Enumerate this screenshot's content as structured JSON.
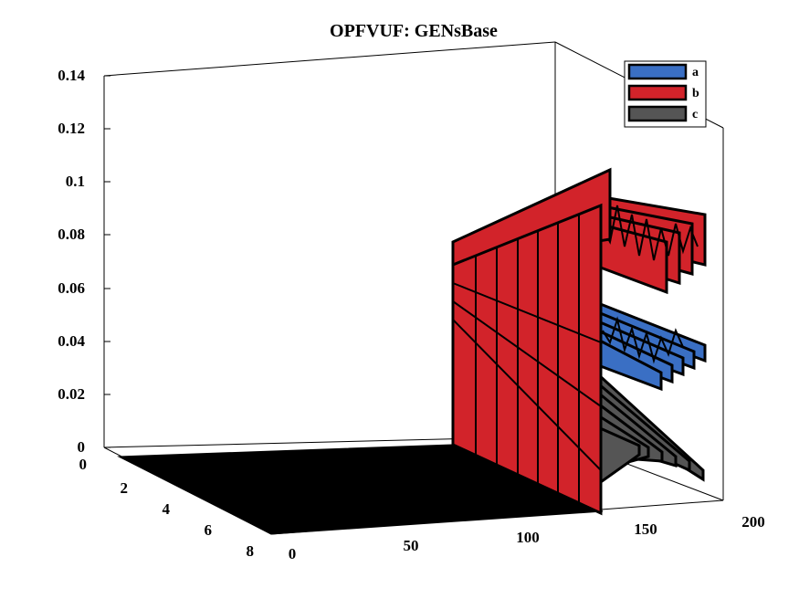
{
  "chart_data": {
    "type": "3d-ribbon",
    "title": "OPFVUF: GENsBase",
    "xlabel": "",
    "ylabel": "",
    "zlabel": "",
    "x_ticks": [
      "0",
      "50",
      "100",
      "150",
      "200"
    ],
    "y_ticks": [
      "0",
      "2",
      "4",
      "6",
      "8"
    ],
    "z_ticks": [
      "0",
      "0.02",
      "0.04",
      "0.06",
      "0.08",
      "0.1",
      "0.12",
      "0.14"
    ],
    "xlim": [
      0,
      200
    ],
    "ylim": [
      0,
      9
    ],
    "zlim": [
      0,
      0.14
    ],
    "grid": false,
    "legend_position": "top-right",
    "series": [
      {
        "name": "a",
        "color": "#3a6fc4",
        "baseline_value": 0,
        "values_x": [
          0,
          130,
          132,
          140,
          150,
          160,
          170,
          180
        ],
        "values_z": [
          0,
          0,
          0.036,
          0.034,
          0.035,
          0.033,
          0.035,
          0.034
        ]
      },
      {
        "name": "b",
        "color": "#d2232a",
        "baseline_value": 0,
        "values_x": [
          0,
          130,
          132,
          140,
          150,
          160,
          170,
          180
        ],
        "values_z": [
          0,
          0,
          0.075,
          0.078,
          0.074,
          0.077,
          0.075,
          0.076
        ]
      },
      {
        "name": "c",
        "color": "#555555",
        "baseline_value": 0,
        "values_x": [
          0,
          130,
          132,
          140,
          150,
          160,
          170,
          180
        ],
        "values_z": [
          0,
          0,
          0.012,
          0.01,
          0.011,
          0.009,
          0.01,
          0.01
        ]
      }
    ]
  }
}
